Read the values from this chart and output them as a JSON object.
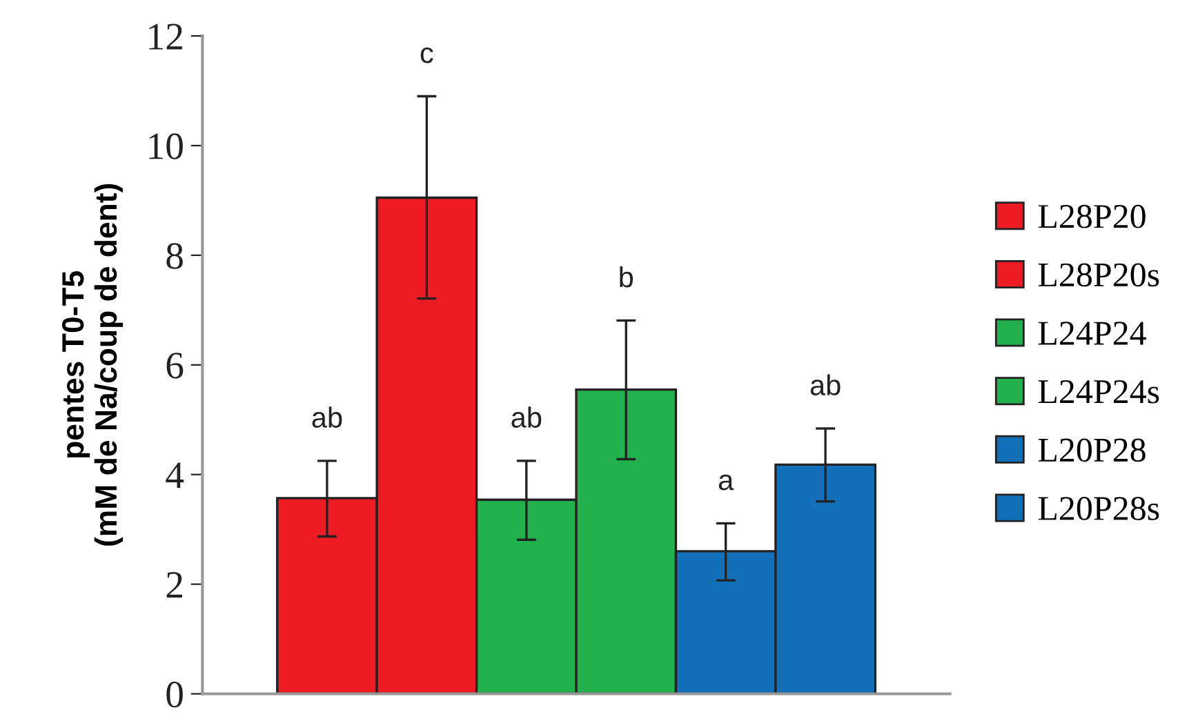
{
  "chart_data": {
    "type": "bar",
    "ylabel": "pentes T0-T5\n(mM de Na/coup de dent)",
    "categories": [
      null
    ],
    "series": [
      {
        "name": "L28P20",
        "color": "#ed1c24",
        "values": [
          3.57
        ],
        "errors": [
          [
            2.87,
            4.25
          ]
        ]
      },
      {
        "name": "L28P20s",
        "color": "#ed1c24",
        "values": [
          9.05
        ],
        "errors": [
          [
            7.21,
            10.9
          ]
        ]
      },
      {
        "name": "L24P24",
        "color": "#22b14c",
        "values": [
          3.54
        ],
        "errors": [
          [
            2.81,
            4.25
          ]
        ]
      },
      {
        "name": "L24P24s",
        "color": "#22b14c",
        "values": [
          5.55
        ],
        "errors": [
          [
            4.28,
            6.81
          ]
        ]
      },
      {
        "name": "L20P28",
        "color": "#1170b8",
        "values": [
          2.6
        ],
        "errors": [
          [
            2.07,
            3.11
          ]
        ]
      },
      {
        "name": "L20P28s",
        "color": "#1170b8",
        "values": [
          4.18
        ],
        "errors": [
          [
            3.51,
            4.84
          ]
        ]
      }
    ],
    "annotations": [
      "ab",
      "c",
      "ab",
      "b",
      "a",
      "ab"
    ],
    "ylim": [
      0,
      12
    ],
    "yticks": [
      0,
      2,
      4,
      6,
      8,
      10,
      12
    ],
    "tick_labels": "y",
    "grid": false,
    "legend": "right"
  }
}
